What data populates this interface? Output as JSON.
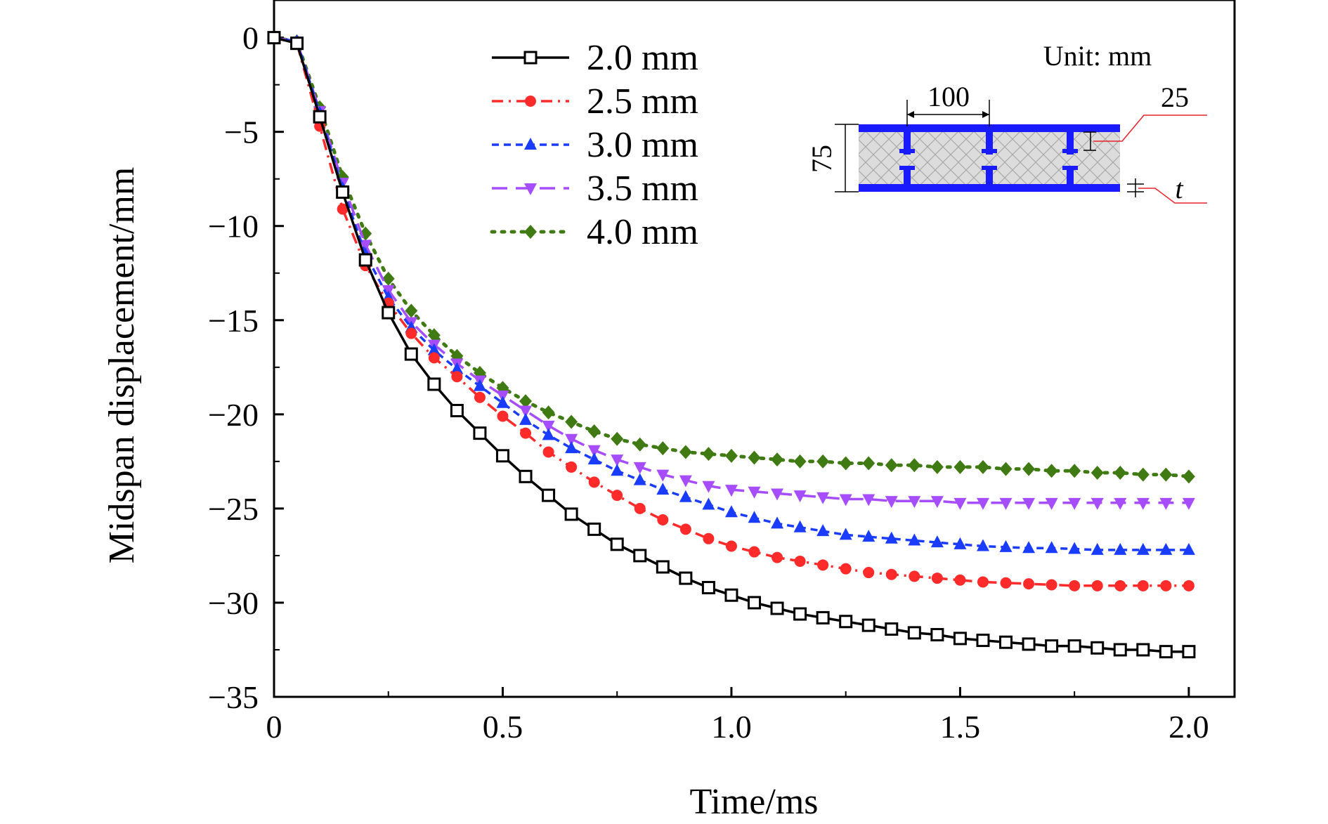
{
  "chart_data": {
    "type": "line",
    "xlabel": "Time/ms",
    "ylabel": "Midspan displacement/mm",
    "xlim": [
      0,
      2.1
    ],
    "ylim": [
      -35,
      2
    ],
    "xticks": [
      0,
      0.5,
      1.0,
      1.5,
      2.0
    ],
    "xtick_labels": [
      "0",
      "0.5",
      "1.0",
      "1.5",
      "2.0"
    ],
    "yticks": [
      0,
      -5,
      -10,
      -15,
      -20,
      -25,
      -30,
      -35
    ],
    "ytick_labels": [
      "0",
      "−5",
      "−10",
      "−15",
      "−20",
      "−25",
      "−30",
      "−35"
    ],
    "grid": false,
    "legend_position": "top-center",
    "x": [
      0,
      0.05,
      0.1,
      0.15,
      0.2,
      0.25,
      0.3,
      0.35,
      0.4,
      0.45,
      0.5,
      0.55,
      0.6,
      0.65,
      0.7,
      0.75,
      0.8,
      0.85,
      0.9,
      0.95,
      1.0,
      1.05,
      1.1,
      1.15,
      1.2,
      1.25,
      1.3,
      1.35,
      1.4,
      1.45,
      1.5,
      1.55,
      1.6,
      1.65,
      1.7,
      1.75,
      1.8,
      1.85,
      1.9,
      1.95,
      2.0
    ],
    "series": [
      {
        "name": "2.0 mm",
        "color": "#000000",
        "dash": "solid",
        "marker": "square-open",
        "values": [
          0,
          -0.3,
          -4.2,
          -8.2,
          -11.8,
          -14.6,
          -16.8,
          -18.4,
          -19.8,
          -21.0,
          -22.2,
          -23.3,
          -24.3,
          -25.3,
          -26.1,
          -26.9,
          -27.5,
          -28.1,
          -28.7,
          -29.2,
          -29.6,
          -30.0,
          -30.3,
          -30.6,
          -30.8,
          -31.0,
          -31.2,
          -31.4,
          -31.6,
          -31.7,
          -31.9,
          -32.0,
          -32.1,
          -32.2,
          -32.3,
          -32.3,
          -32.4,
          -32.5,
          -32.5,
          -32.6,
          -32.6
        ]
      },
      {
        "name": "2.5 mm",
        "color": "#ff2a2a",
        "dash": "dash-dot",
        "marker": "circle",
        "values": [
          0,
          -0.3,
          -4.7,
          -9.1,
          -12.1,
          -14.1,
          -15.7,
          -17.0,
          -18.0,
          -19.1,
          -20.1,
          -21.0,
          -22.0,
          -22.8,
          -23.6,
          -24.3,
          -25.0,
          -25.6,
          -26.1,
          -26.6,
          -27.0,
          -27.3,
          -27.6,
          -27.8,
          -28.0,
          -28.2,
          -28.4,
          -28.5,
          -28.6,
          -28.7,
          -28.8,
          -28.9,
          -28.95,
          -29.0,
          -29.05,
          -29.1,
          -29.1,
          -29.1,
          -29.1,
          -29.1,
          -29.1
        ]
      },
      {
        "name": "3.0 mm",
        "color": "#1a3cff",
        "dash": "dashed",
        "marker": "triangle-up",
        "values": [
          0,
          -0.2,
          -4.0,
          -8.0,
          -11.5,
          -13.8,
          -15.4,
          -16.6,
          -17.6,
          -18.5,
          -19.4,
          -20.3,
          -21.1,
          -21.8,
          -22.4,
          -23.0,
          -23.5,
          -24.0,
          -24.4,
          -24.8,
          -25.2,
          -25.5,
          -25.8,
          -26.0,
          -26.2,
          -26.4,
          -26.5,
          -26.6,
          -26.7,
          -26.8,
          -26.9,
          -27.0,
          -27.05,
          -27.1,
          -27.1,
          -27.15,
          -27.2,
          -27.2,
          -27.2,
          -27.2,
          -27.2
        ]
      },
      {
        "name": "3.5 mm",
        "color": "#a64dff",
        "dash": "long-dash",
        "marker": "triangle-down",
        "values": [
          0,
          -0.2,
          -3.9,
          -7.7,
          -11.0,
          -13.4,
          -15.1,
          -16.3,
          -17.3,
          -18.2,
          -19.0,
          -19.8,
          -20.6,
          -21.3,
          -21.9,
          -22.4,
          -22.8,
          -23.2,
          -23.5,
          -23.8,
          -24.0,
          -24.1,
          -24.2,
          -24.3,
          -24.4,
          -24.5,
          -24.5,
          -24.6,
          -24.6,
          -24.6,
          -24.7,
          -24.7,
          -24.7,
          -24.7,
          -24.7,
          -24.7,
          -24.7,
          -24.7,
          -24.7,
          -24.7,
          -24.7
        ]
      },
      {
        "name": "4.0 mm",
        "color": "#3f7a12",
        "dash": "dotted",
        "marker": "diamond",
        "values": [
          0,
          -0.2,
          -3.7,
          -7.4,
          -10.4,
          -12.8,
          -14.5,
          -15.8,
          -16.9,
          -17.8,
          -18.6,
          -19.3,
          -19.9,
          -20.4,
          -20.9,
          -21.3,
          -21.6,
          -21.8,
          -22.0,
          -22.1,
          -22.2,
          -22.3,
          -22.4,
          -22.5,
          -22.5,
          -22.6,
          -22.6,
          -22.7,
          -22.7,
          -22.8,
          -22.8,
          -22.8,
          -22.9,
          -22.9,
          -23.0,
          -23.0,
          -23.1,
          -23.1,
          -23.2,
          -23.2,
          -23.3
        ]
      }
    ],
    "inset": {
      "unit_label": "Unit: mm",
      "width_label": "100",
      "height_label": "75",
      "core_label": "25",
      "thickness_label": "t",
      "face_color": "#1a1aff",
      "dim_color": "#e8202a",
      "core_color": "#d8d8d8"
    }
  }
}
